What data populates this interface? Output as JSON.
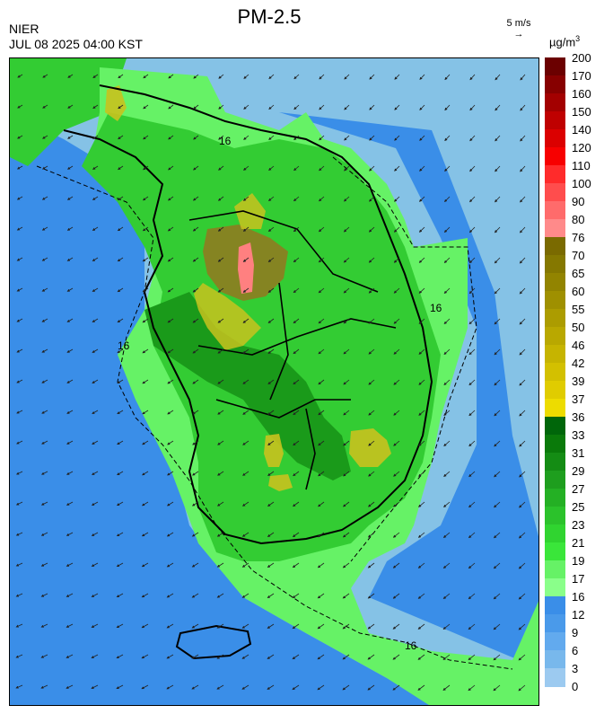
{
  "header": {
    "agency": "NIER",
    "datetime": "JUL 08 2025 04:00 KST",
    "title": "PM-2.5",
    "wind_reference": "5 m/s",
    "unit": "µg/m",
    "unit_exponent": "3"
  },
  "map": {
    "region": "South Korea",
    "contour_label": "16",
    "colors": {
      "sea_low": "#85c2e6",
      "sea_mid": "#3a8ee8",
      "land_light": "#66f266",
      "land_mid": "#33cc33",
      "land_dark": "#1a9a1a",
      "high_yellow": "#c8c21e",
      "high_olive": "#8a7f22",
      "peak_pink": "#ff8080",
      "border": "#000000"
    }
  },
  "legend": {
    "ticks": [
      "200",
      "170",
      "160",
      "150",
      "140",
      "120",
      "110",
      "100",
      "90",
      "80",
      "76",
      "70",
      "65",
      "60",
      "55",
      "50",
      "46",
      "42",
      "39",
      "37",
      "36",
      "33",
      "31",
      "29",
      "27",
      "25",
      "23",
      "21",
      "19",
      "17",
      "16",
      "12",
      "9",
      "6",
      "3",
      "0"
    ],
    "colors": [
      "#6b0000",
      "#870000",
      "#a30000",
      "#bf0000",
      "#db0000",
      "#f70000",
      "#ff2b2b",
      "#ff4d4d",
      "#ff6b6b",
      "#ff8a8a",
      "#7a6a00",
      "#857800",
      "#928400",
      "#9f9000",
      "#ac9c00",
      "#b9a800",
      "#c6b400",
      "#d3c000",
      "#e0cc00",
      "#eddc00",
      "#00660a",
      "#0a7a0a",
      "#148c14",
      "#1e9e1e",
      "#24b024",
      "#2bc22b",
      "#30d430",
      "#3ae63a",
      "#66f266",
      "#8aff8a",
      "#3a8ee8",
      "#4a9aea",
      "#62aaee",
      "#78b8ec",
      "#9ccaf0"
    ]
  }
}
